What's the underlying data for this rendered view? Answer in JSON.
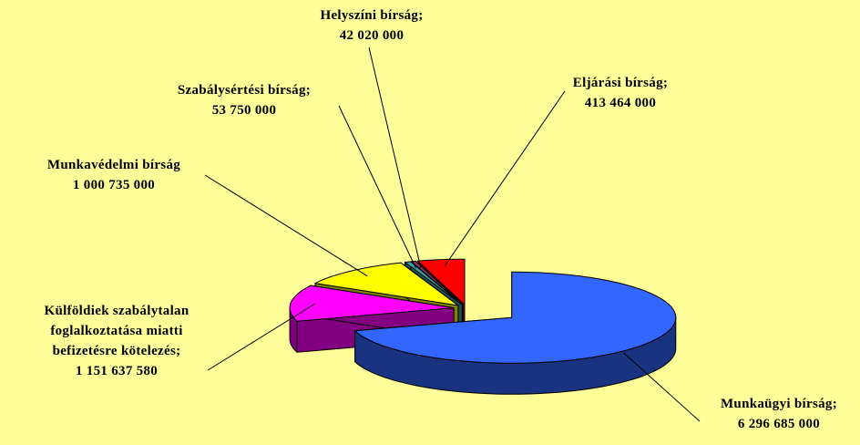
{
  "chart_data": {
    "type": "pie3d",
    "categories": [
      "Munkaügyi bírság;",
      "Külföldiek szabálytalan foglalkoztatása miatti befizetésre kötelezés;",
      "Munkavédelmi bírság",
      "Szabálysértési bírság;",
      "Helyszíni bírság;",
      "Eljárási bírság;"
    ],
    "values": [
      6296685000,
      1151637580,
      1000735000,
      53750000,
      42020000,
      413464000
    ],
    "value_labels": [
      "6 296 685 000",
      "1 151 637 580",
      "1 000 735 000",
      "53 750 000",
      "42 020 000",
      "413 464 000"
    ],
    "colors": [
      "#3366ff",
      "#ff00ff",
      "#ffff00",
      "#33a0a0",
      "#993366",
      "#ff0000"
    ]
  }
}
